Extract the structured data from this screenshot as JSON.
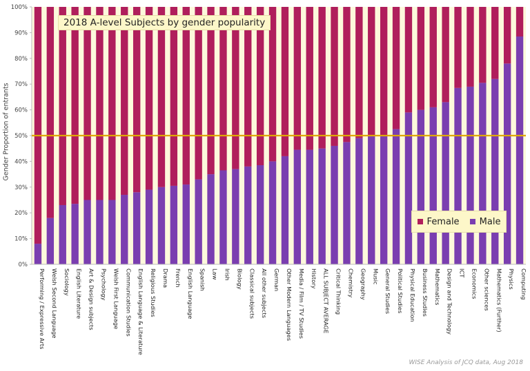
{
  "chart_data": {
    "type": "bar",
    "stacked": true,
    "title": "2018 A-level Subjects by gender popularity",
    "ylabel": "Gender Proportion of entrants",
    "xlabel": "",
    "ylim": [
      0,
      100
    ],
    "yticks": [
      "0%",
      "10%",
      "20%",
      "30%",
      "40%",
      "50%",
      "60%",
      "70%",
      "80%",
      "90%",
      "100%"
    ],
    "reference_line": 50,
    "grid": false,
    "legend_position": "bottom-right",
    "categories": [
      "Performing / Expressive Arts",
      "Welsh Second Language",
      "Sociology",
      "English Literature",
      "Art & Design subjects",
      "Psychology",
      "Welsh First Language",
      "Communication Studies",
      "English Language & Literature",
      "Religious Studies",
      "Drama",
      "French",
      "English Language",
      "Spanish",
      "Law",
      "Irish",
      "Biology",
      "Classical subjects",
      "All other subjects",
      "German",
      "Other Modern Languages",
      "Media / Film / TV Studies",
      "History",
      "ALL SUBJECT AVERAGE",
      "Critical Thinking",
      "Chemistry",
      "Geography",
      "Music",
      "General Studies",
      "Political Studies",
      "Physical Education",
      "Business Studies",
      "Mathematics",
      "Design and Technology",
      "ICT",
      "Economics",
      "Other sciences",
      "Mathematics (Further)",
      "Physics",
      "Computing"
    ],
    "series": [
      {
        "name": "Male",
        "color": "#7a3eb0",
        "values": [
          8,
          18,
          23,
          23.5,
          25,
          25,
          25,
          27,
          28,
          29,
          30,
          30.5,
          31,
          33,
          35,
          36.5,
          37,
          38,
          38.5,
          40,
          42,
          44.5,
          44.5,
          45,
          46,
          47.5,
          49,
          50,
          50,
          52.5,
          59,
          60,
          61,
          63,
          68.5,
          69,
          70.5,
          72,
          78,
          88.5
        ]
      },
      {
        "name": "Female",
        "color": "#b01e5c",
        "values": [
          92,
          82,
          77,
          76.5,
          75,
          75,
          75,
          73,
          72,
          71,
          70,
          69.5,
          69,
          67,
          65,
          63.5,
          63,
          62,
          61.5,
          60,
          58,
          55.5,
          55.5,
          55,
          54,
          52.5,
          51,
          50,
          50,
          47.5,
          41,
          40,
          39,
          37,
          31.5,
          31,
          29.5,
          28,
          22,
          11.5
        ]
      }
    ],
    "source_note": "WISE Analysis of JCQ data, Aug 2018"
  },
  "legend": {
    "female": "Female",
    "male": "Male"
  }
}
